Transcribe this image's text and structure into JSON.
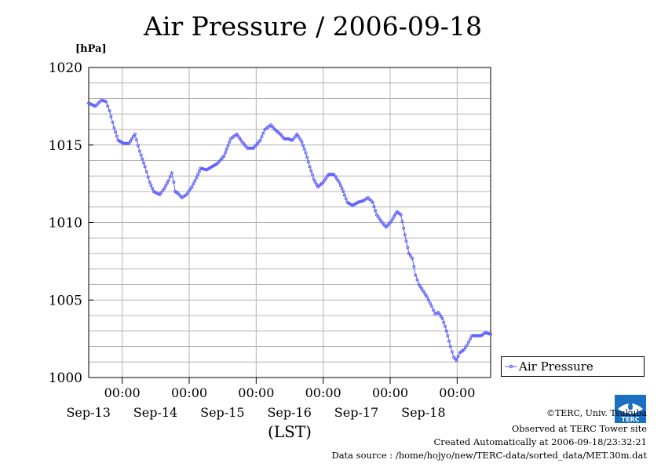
{
  "title": "Air Pressure / 2006-09-18",
  "unit_label": "[hPa]",
  "xlabel": "(LST)",
  "legend": {
    "label": "Air Pressure"
  },
  "credits": {
    "copyright": "©TERC, Univ. Tsukuba",
    "observed": "Observed at TERC Tower site",
    "created": "Created Automatically at 2006-09-18/23:32:21",
    "source": "Data source : /home/hojyo/new/TERC-data/sorted_data/MET.30m.dat",
    "logo_text": "TERC"
  },
  "colors": {
    "series": "#5b5bff",
    "grid": "#b4b4b4",
    "axis": "#000000"
  },
  "chart_data": {
    "type": "line",
    "title": "Air Pressure / 2006-09-18",
    "ylabel": "[hPa]",
    "xlabel": "(LST)",
    "ylim": [
      1000,
      1020
    ],
    "yticks": [
      1000,
      1005,
      1010,
      1015,
      1020
    ],
    "xlim": [
      0,
      6
    ],
    "x_unit": "days since 2006-09-12 12:00",
    "x_ticks": [
      {
        "x": 0.5,
        "time": "00:00",
        "date": "Sep-13"
      },
      {
        "x": 1.5,
        "time": "00:00",
        "date": "Sep-14"
      },
      {
        "x": 2.5,
        "time": "00:00",
        "date": "Sep-15"
      },
      {
        "x": 3.5,
        "time": "00:00",
        "date": "Sep-16"
      },
      {
        "x": 4.5,
        "time": "00:00",
        "date": "Sep-17"
      },
      {
        "x": 5.5,
        "time": "00:00",
        "date": "Sep-18"
      }
    ],
    "grid": true,
    "legend_position": "right",
    "series": [
      {
        "name": "Air Pressure",
        "marker": "circle",
        "points": [
          [
            0.0,
            1017.7
          ],
          [
            0.1,
            1017.5
          ],
          [
            0.19,
            1017.9
          ],
          [
            0.26,
            1017.8
          ],
          [
            0.31,
            1017.2
          ],
          [
            0.38,
            1016.1
          ],
          [
            0.44,
            1015.3
          ],
          [
            0.52,
            1015.1
          ],
          [
            0.6,
            1015.1
          ],
          [
            0.69,
            1015.7
          ],
          [
            0.76,
            1014.6
          ],
          [
            0.84,
            1013.6
          ],
          [
            0.91,
            1012.6
          ],
          [
            0.97,
            1012.0
          ],
          [
            1.06,
            1011.8
          ],
          [
            1.13,
            1012.2
          ],
          [
            1.19,
            1012.7
          ],
          [
            1.24,
            1013.2
          ],
          [
            1.27,
            1012.6
          ],
          [
            1.29,
            1012.0
          ],
          [
            1.33,
            1011.9
          ],
          [
            1.39,
            1011.6
          ],
          [
            1.46,
            1011.8
          ],
          [
            1.54,
            1012.3
          ],
          [
            1.61,
            1012.9
          ],
          [
            1.67,
            1013.5
          ],
          [
            1.76,
            1013.4
          ],
          [
            1.84,
            1013.6
          ],
          [
            1.92,
            1013.8
          ],
          [
            2.02,
            1014.3
          ],
          [
            2.12,
            1015.4
          ],
          [
            2.21,
            1015.7
          ],
          [
            2.29,
            1015.2
          ],
          [
            2.37,
            1014.8
          ],
          [
            2.46,
            1014.8
          ],
          [
            2.56,
            1015.3
          ],
          [
            2.63,
            1016.0
          ],
          [
            2.72,
            1016.3
          ],
          [
            2.78,
            1016.0
          ],
          [
            2.86,
            1015.7
          ],
          [
            2.92,
            1015.4
          ],
          [
            2.98,
            1015.4
          ],
          [
            3.04,
            1015.3
          ],
          [
            3.11,
            1015.7
          ],
          [
            3.18,
            1015.2
          ],
          [
            3.24,
            1014.5
          ],
          [
            3.3,
            1013.6
          ],
          [
            3.36,
            1012.8
          ],
          [
            3.42,
            1012.3
          ],
          [
            3.5,
            1012.6
          ],
          [
            3.58,
            1013.1
          ],
          [
            3.66,
            1013.1
          ],
          [
            3.74,
            1012.6
          ],
          [
            3.8,
            1012.0
          ],
          [
            3.86,
            1011.3
          ],
          [
            3.94,
            1011.1
          ],
          [
            4.02,
            1011.3
          ],
          [
            4.1,
            1011.4
          ],
          [
            4.17,
            1011.6
          ],
          [
            4.24,
            1011.3
          ],
          [
            4.3,
            1010.5
          ],
          [
            4.38,
            1010.0
          ],
          [
            4.44,
            1009.7
          ],
          [
            4.52,
            1010.1
          ],
          [
            4.6,
            1010.7
          ],
          [
            4.66,
            1010.5
          ],
          [
            4.72,
            1009.2
          ],
          [
            4.78,
            1008.0
          ],
          [
            4.83,
            1007.7
          ],
          [
            4.88,
            1006.6
          ],
          [
            4.93,
            1006.0
          ],
          [
            4.99,
            1005.6
          ],
          [
            5.05,
            1005.2
          ],
          [
            5.12,
            1004.6
          ],
          [
            5.17,
            1004.1
          ],
          [
            5.22,
            1004.2
          ],
          [
            5.28,
            1003.8
          ],
          [
            5.32,
            1003.3
          ],
          [
            5.36,
            1002.7
          ],
          [
            5.4,
            1002.0
          ],
          [
            5.45,
            1001.3
          ],
          [
            5.49,
            1001.1
          ],
          [
            5.54,
            1001.6
          ],
          [
            5.6,
            1001.8
          ],
          [
            5.65,
            1002.1
          ],
          [
            5.72,
            1002.7
          ],
          [
            5.8,
            1002.7
          ],
          [
            5.86,
            1002.7
          ],
          [
            5.92,
            1002.9
          ],
          [
            6.0,
            1002.8
          ]
        ]
      }
    ]
  }
}
